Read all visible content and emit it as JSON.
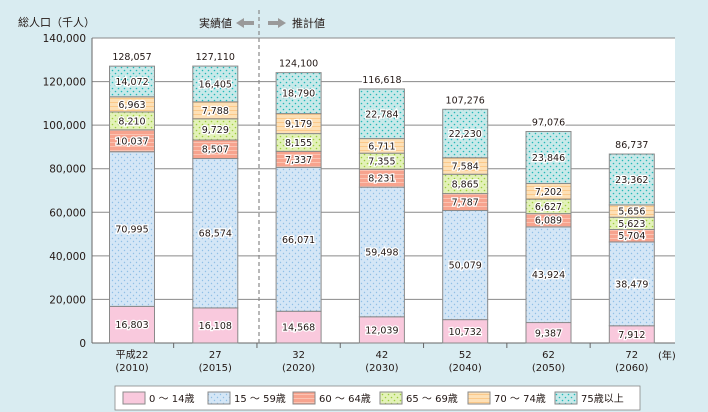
{
  "chart_data": {
    "type": "bar",
    "stacked": true,
    "ylabel": "総人口（千人）",
    "xunit": "(年)",
    "ylim": [
      0,
      140000
    ],
    "yticks": [
      "0",
      "20,000",
      "40,000",
      "60,000",
      "80,000",
      "100,000",
      "120,000",
      "140,000"
    ],
    "grid": true,
    "legend_position": "bottom",
    "annotations": {
      "actual": "実績値",
      "projected": "推計値"
    },
    "categories": [
      {
        "era": "平成22",
        "year": "(2010)"
      },
      {
        "era": "27",
        "year": "(2015)"
      },
      {
        "era": "32",
        "year": "(2020)"
      },
      {
        "era": "42",
        "year": "(2030)"
      },
      {
        "era": "52",
        "year": "(2040)"
      },
      {
        "era": "62",
        "year": "(2050)"
      },
      {
        "era": "72",
        "year": "(2060)"
      }
    ],
    "totals": [
      128057,
      127110,
      124100,
      116618,
      107276,
      97076,
      86737
    ],
    "series": [
      {
        "name": "0 ～ 14歳",
        "color": "#f9c9dd",
        "values": [
          16803,
          16108,
          14568,
          12039,
          10732,
          9387,
          7912
        ]
      },
      {
        "name": "15 ～ 59歳",
        "color": "#d4e6f6",
        "values": [
          70995,
          68574,
          66071,
          59498,
          50079,
          43924,
          38479
        ]
      },
      {
        "name": "60 ～ 64歳",
        "color": "#f7a38e",
        "values": [
          10037,
          8507,
          7337,
          8231,
          7787,
          6089,
          5704
        ]
      },
      {
        "name": "65 ～ 69歳",
        "color": "#e3f2b8",
        "values": [
          8210,
          9729,
          8155,
          7355,
          8865,
          6627,
          5623
        ]
      },
      {
        "name": "70 ～ 74歳",
        "color": "#fde0b6",
        "values": [
          6963,
          7788,
          9179,
          6711,
          7584,
          7202,
          5656
        ]
      },
      {
        "name": "75歳以上",
        "color": "#c8e9e9",
        "values": [
          14072,
          16405,
          18790,
          22784,
          22230,
          23846,
          23362
        ]
      }
    ]
  }
}
